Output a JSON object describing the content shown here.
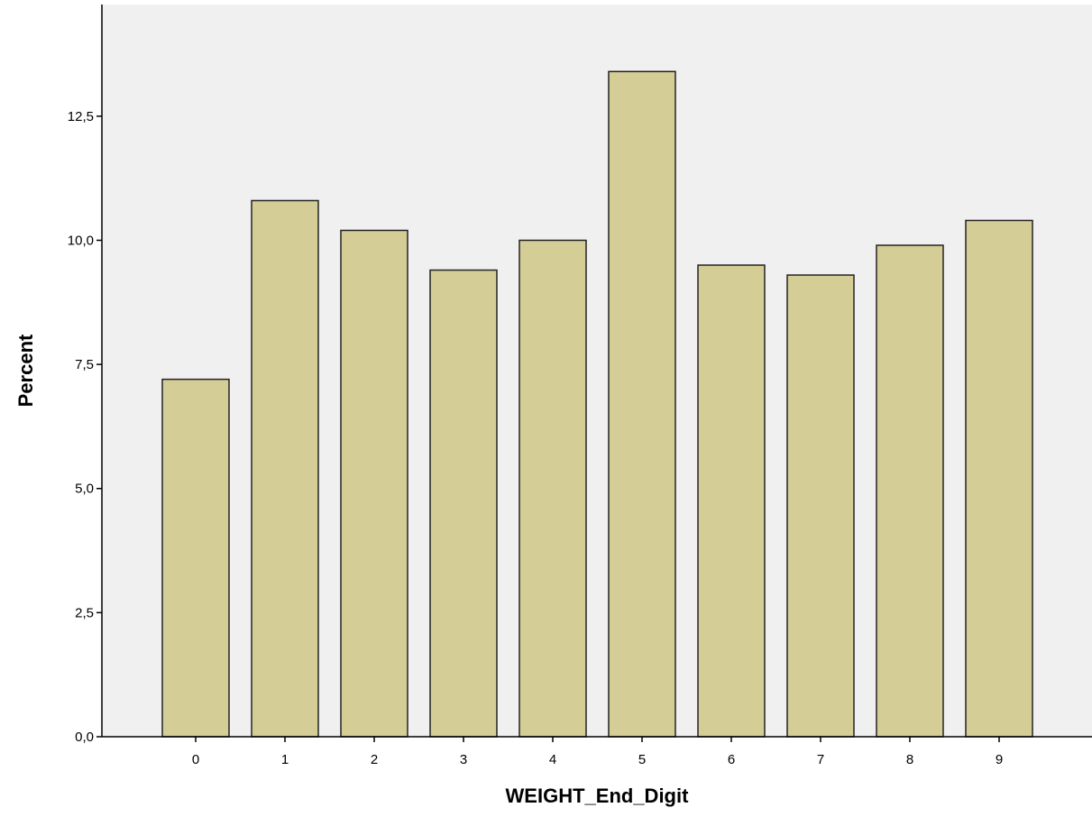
{
  "colors": {
    "plot_background": "#f0f0f0",
    "bar_fill": "#d4cd96",
    "bar_stroke": "#222222",
    "axis": "#000000"
  },
  "chart_data": {
    "type": "bar",
    "title": "",
    "xlabel": "WEIGHT_End_Digit",
    "ylabel": "Percent",
    "categories": [
      "0",
      "1",
      "2",
      "3",
      "4",
      "5",
      "6",
      "7",
      "8",
      "9"
    ],
    "values": [
      7.2,
      10.8,
      10.2,
      9.4,
      10.0,
      13.4,
      9.5,
      9.3,
      9.9,
      10.4
    ],
    "ylim": [
      0,
      14.75
    ],
    "yticks": [
      0,
      2.5,
      5.0,
      7.5,
      10.0,
      12.5
    ],
    "ytick_labels": [
      "0,0",
      "2,5",
      "5,0",
      "7,5",
      "10,0",
      "12,5"
    ],
    "grid": false,
    "legend": "none"
  }
}
